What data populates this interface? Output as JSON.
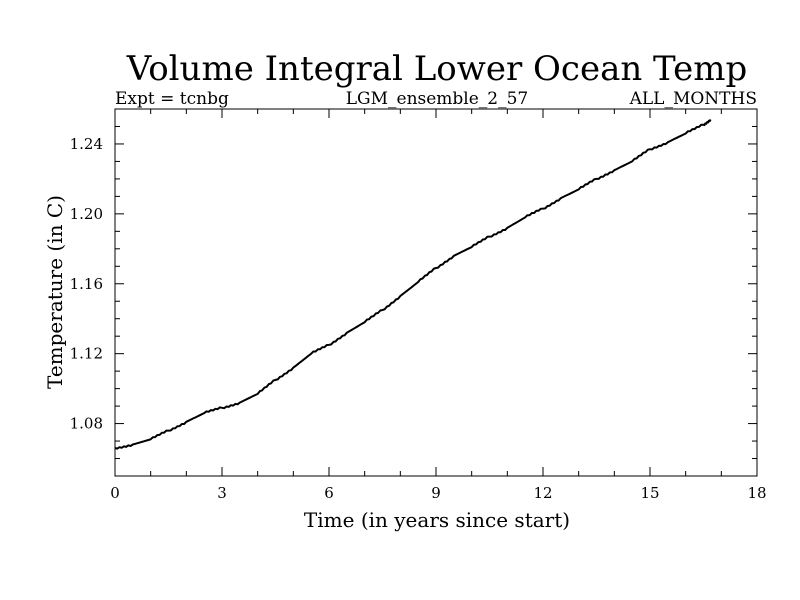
{
  "chart_data": {
    "type": "line",
    "title": "Volume Integral Lower Ocean Temp",
    "subtitle_left": "Expt = tcnbg",
    "subtitle_center": "LGM_ensemble_2_57",
    "subtitle_right": "ALL_MONTHS",
    "xlabel": "Time (in years since start)",
    "ylabel": "Temperature (in C)",
    "xlim": [
      0,
      18
    ],
    "ylim": [
      1.05,
      1.26
    ],
    "x_ticks": [
      0,
      3,
      6,
      9,
      12,
      15,
      18
    ],
    "x_tick_labels": [
      "0",
      "3",
      "6",
      "9",
      "12",
      "15",
      "18"
    ],
    "y_ticks": [
      1.08,
      1.12,
      1.16,
      1.2,
      1.24
    ],
    "y_tick_labels": [
      "1.08",
      "1.12",
      "1.16",
      "1.20",
      "1.24"
    ],
    "grid": false,
    "series": [
      {
        "name": "Volume Integral Lower Ocean Temp",
        "color": "#000000",
        "x": [
          0,
          0.5,
          1,
          1.5,
          2,
          2.5,
          3,
          3.5,
          4,
          4.5,
          5,
          5.5,
          6,
          6.5,
          7,
          7.5,
          8,
          8.5,
          9,
          9.5,
          10,
          10.5,
          11,
          11.5,
          12,
          12.5,
          13,
          13.5,
          14,
          14.5,
          15,
          15.5,
          16,
          16.5,
          16.7
        ],
        "y": [
          1.066,
          1.068,
          1.071,
          1.076,
          1.081,
          1.086,
          1.089,
          1.092,
          1.097,
          1.105,
          1.112,
          1.12,
          1.125,
          1.132,
          1.138,
          1.145,
          1.153,
          1.161,
          1.169,
          1.176,
          1.181,
          1.187,
          1.192,
          1.198,
          1.203,
          1.209,
          1.214,
          1.22,
          1.225,
          1.23,
          1.237,
          1.241,
          1.246,
          1.251,
          1.254
        ]
      }
    ]
  }
}
